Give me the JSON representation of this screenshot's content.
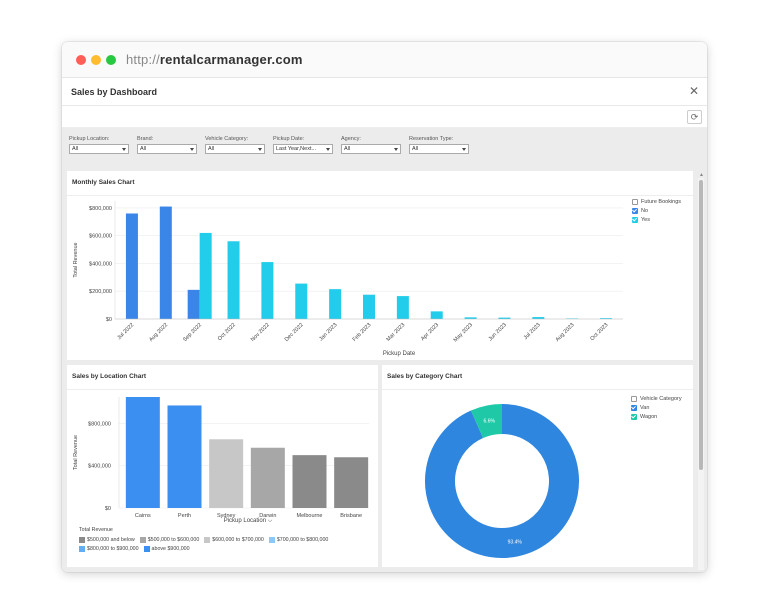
{
  "browser": {
    "url_prefix": "http://",
    "url_host": "rentalcarmanager.com"
  },
  "page_title": "Sales by Dashboard",
  "filters": [
    {
      "label": "Pickup Location:",
      "value": "All"
    },
    {
      "label": "Brand:",
      "value": "All"
    },
    {
      "label": "Vehicle Category:",
      "value": "All"
    },
    {
      "label": "Pickup Date:",
      "value": "Last Year,Next..."
    },
    {
      "label": "Agency:",
      "value": "All"
    },
    {
      "label": "Reservation Type:",
      "value": "All"
    }
  ],
  "colors": {
    "dark_blue": "#3a86e8",
    "cyan": "#21cdea",
    "wagon": "#1fc9a8",
    "van": "#2e86de"
  },
  "monthly": {
    "title": "Monthly Sales Chart",
    "legend_title": "Future Bookings",
    "legend_items": [
      "No",
      "Yes"
    ]
  },
  "location": {
    "title": "Sales by Location Chart",
    "legend_title": "Total Revenue",
    "legend_items": [
      {
        "label": "$500,000 and below",
        "color": "#8a8a8a"
      },
      {
        "label": "$500,000 to $600,000",
        "color": "#a7a7a7"
      },
      {
        "label": "$600,000 to $700,000",
        "color": "#c7c7c7"
      },
      {
        "label": "$700,000 to $800,000",
        "color": "#8cc8f7"
      },
      {
        "label": "$800,000 to $900,000",
        "color": "#61aef5"
      },
      {
        "label": "above $900,000",
        "color": "#3b8ff0"
      }
    ]
  },
  "category": {
    "title": "Sales by Category Chart",
    "legend_title": "Vehicle Category",
    "legend_items": [
      "Van",
      "Wagon"
    ]
  },
  "chart_data": [
    {
      "type": "bar",
      "title": "Monthly Sales Chart",
      "xlabel": "Pickup Date",
      "ylabel": "Total Revenue",
      "ylim": [
        0,
        850000
      ],
      "yticks": [
        "$0",
        "$200,000",
        "$400,000",
        "$600,000",
        "$800,000"
      ],
      "categories": [
        "Jul 2022",
        "Aug 2022",
        "Sep 2022",
        "Oct 2022",
        "Nov 2022",
        "Dec 2022",
        "Jan 2023",
        "Feb 2023",
        "Mar 2023",
        "Apr 2023",
        "May 2023",
        "Jun 2023",
        "Jul 2023",
        "Aug 2023",
        "Oct 2023"
      ],
      "series": [
        {
          "name": "No",
          "values": [
            760000,
            810000,
            210000,
            null,
            null,
            null,
            null,
            null,
            null,
            null,
            null,
            null,
            null,
            null,
            null
          ]
        },
        {
          "name": "Yes",
          "values": [
            null,
            null,
            620000,
            560000,
            410000,
            255000,
            215000,
            175000,
            165000,
            55000,
            12000,
            10000,
            14000,
            4000,
            6000
          ]
        }
      ]
    },
    {
      "type": "bar",
      "title": "Sales by Location Chart",
      "xlabel": "Pickup Location",
      "ylabel": "Total Revenue",
      "ylim": [
        0,
        1050000
      ],
      "yticks": [
        "$0",
        "$400,000",
        "$800,000"
      ],
      "categories": [
        "Cairns",
        "Perth",
        "Sydney",
        "Darwin",
        "Melbourne",
        "Brisbane"
      ],
      "values": [
        1050000,
        970000,
        650000,
        570000,
        500000,
        480000
      ]
    },
    {
      "type": "pie",
      "title": "Sales by Category Chart",
      "labels": [
        "Van",
        "Wagon"
      ],
      "values": [
        93.4,
        6.6
      ],
      "value_labels": [
        "93.4%",
        "6.6%"
      ]
    }
  ]
}
